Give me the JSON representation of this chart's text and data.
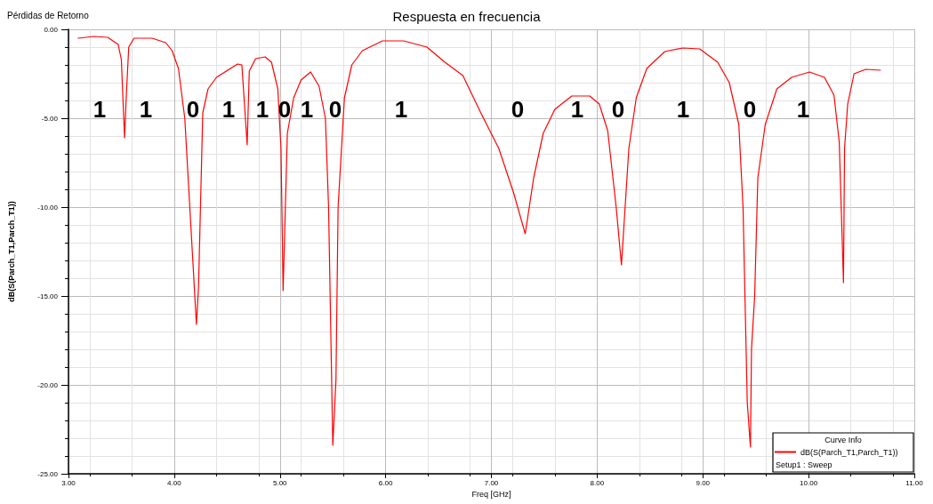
{
  "chart_data": {
    "type": "line",
    "title": "Respuesta en frecuencia",
    "subtitle": "Pérdidas de Retorno",
    "xlabel": "Freq [GHz]",
    "ylabel": "dB(S(Parch_T1,Parch_T1))",
    "legend_title": "Curve Info",
    "xlim": [
      3,
      11
    ],
    "ylim": [
      -25,
      0
    ],
    "xticks": [
      {
        "value": 3,
        "label": "3.00"
      },
      {
        "value": 4,
        "label": "4.00"
      },
      {
        "value": 5,
        "label": "5.00"
      },
      {
        "value": 6,
        "label": "6.00"
      },
      {
        "value": 7,
        "label": "7.00"
      },
      {
        "value": 8,
        "label": "8.00"
      },
      {
        "value": 9,
        "label": "9.00"
      },
      {
        "value": 10,
        "label": "10.00"
      },
      {
        "value": 11,
        "label": "11.00"
      }
    ],
    "yticks": [
      {
        "value": -25,
        "label": "-25.00"
      },
      {
        "value": -20,
        "label": "-20.00"
      },
      {
        "value": -15,
        "label": "-15.00"
      },
      {
        "value": -10,
        "label": "-10.00"
      },
      {
        "value": -5,
        "label": "-5.00"
      },
      {
        "value": 0,
        "label": "0.00"
      }
    ],
    "grid": true,
    "legend": "bottom right",
    "marker": "none",
    "line_style": "solid",
    "series": [
      {
        "name": "dB(S(Parch_T1,Parch_T1))",
        "color": "#ff0000",
        "x": [
          3.09,
          3.24,
          3.37,
          3.47,
          3.5,
          3.53,
          3.55,
          3.57,
          3.62,
          3.79,
          3.92,
          3.98,
          4.04,
          4.1,
          4.21,
          4.23,
          4.27,
          4.32,
          4.4,
          4.6,
          4.64,
          4.69,
          4.71,
          4.77,
          4.86,
          4.92,
          4.98,
          5.01,
          5.03,
          5.07,
          5.13,
          5.2,
          5.29,
          5.37,
          5.43,
          5.46,
          5.5,
          5.53,
          5.55,
          5.61,
          5.68,
          5.78,
          5.97,
          6.17,
          6.39,
          6.56,
          6.73,
          6.9,
          7.07,
          7.21,
          7.32,
          7.4,
          7.49,
          7.6,
          7.76,
          7.93,
          8.02,
          8.1,
          8.18,
          8.23,
          8.3,
          8.37,
          8.47,
          8.64,
          8.81,
          8.97,
          9.14,
          9.25,
          9.34,
          9.38,
          9.42,
          9.45,
          9.46,
          9.49,
          9.52,
          9.59,
          9.7,
          9.84,
          10.01,
          10.15,
          10.24,
          10.29,
          10.33,
          10.34,
          10.37,
          10.43,
          10.54,
          10.68
        ],
        "values": [
          -0.5,
          -0.4,
          -0.45,
          -0.85,
          -1.7,
          -6.1,
          -3.35,
          -1.0,
          -0.5,
          -0.5,
          -0.75,
          -1.2,
          -2.2,
          -5.0,
          -16.6,
          -14.5,
          -4.7,
          -3.35,
          -2.7,
          -1.95,
          -2.0,
          -6.5,
          -2.35,
          -1.65,
          -1.55,
          -1.85,
          -3.35,
          -6.7,
          -14.7,
          -5.85,
          -3.85,
          -2.85,
          -2.4,
          -3.2,
          -5.0,
          -10,
          -23.4,
          -19.7,
          -10,
          -3.85,
          -2.0,
          -1.2,
          -0.65,
          -0.65,
          -1.0,
          -1.85,
          -2.6,
          -4.7,
          -6.7,
          -9.2,
          -11.5,
          -8.35,
          -5.85,
          -4.5,
          -3.75,
          -3.75,
          -4.2,
          -5.7,
          -10,
          -13.25,
          -6.7,
          -3.85,
          -2.2,
          -1.25,
          -1.05,
          -1.1,
          -1.85,
          -3.0,
          -5.35,
          -10,
          -21,
          -23.5,
          -18,
          -15,
          -8.35,
          -5.35,
          -3.35,
          -2.7,
          -2.4,
          -2.7,
          -3.7,
          -6.35,
          -14.25,
          -6.7,
          -4.2,
          -2.5,
          -2.25,
          -2.3
        ]
      }
    ],
    "annotations": [
      "Setup1 : Sweep",
      "1",
      "1",
      "0",
      "1",
      "1",
      "0",
      "1",
      "0",
      "1",
      "0",
      "1",
      "0",
      "1",
      "0",
      "1"
    ]
  }
}
